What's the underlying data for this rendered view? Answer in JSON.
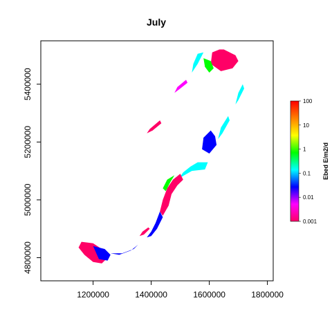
{
  "chart_data": {
    "type": "heatmap",
    "title": "July",
    "xlabel": "",
    "ylabel": "",
    "xlim": [
      1020000,
      1820000
    ],
    "ylim": [
      4720000,
      5550000
    ],
    "x_ticks": [
      {
        "value": 1200000,
        "label": "1200000"
      },
      {
        "value": 1400000,
        "label": "1400000"
      },
      {
        "value": 1600000,
        "label": "1600000"
      },
      {
        "value": 1800000,
        "label": "1800000"
      }
    ],
    "y_ticks": [
      {
        "value": 4800000,
        "label": "4800000"
      },
      {
        "value": 5000000,
        "label": "5000000"
      },
      {
        "value": 5200000,
        "label": "5200000"
      },
      {
        "value": 5400000,
        "label": "5400000"
      }
    ],
    "colorbar": {
      "label": "Ebed E/m2/d",
      "scale": "log",
      "range": [
        0.001,
        100
      ],
      "ticks": [
        "0.001",
        "0.01",
        "0.1",
        "1",
        "10",
        "100"
      ],
      "colors": [
        "#ff0000",
        "#ff8000",
        "#ffff00",
        "#00ff00",
        "#00ffff",
        "#0000ff",
        "#ff00ff",
        "#ff0066"
      ]
    },
    "regions": [
      {
        "name": "north-tip",
        "points": [
          [
            1650000,
            5520000
          ],
          [
            1690000,
            5500000
          ],
          [
            1700000,
            5480000
          ],
          [
            1680000,
            5455000
          ],
          [
            1640000,
            5445000
          ],
          [
            1605000,
            5470000
          ],
          [
            1610000,
            5510000
          ],
          [
            1635000,
            5520000
          ]
        ],
        "level": 0.002
      },
      {
        "name": "north-tip-edge",
        "points": [
          [
            1580000,
            5490000
          ],
          [
            1605000,
            5480000
          ],
          [
            1615000,
            5455000
          ],
          [
            1600000,
            5440000
          ],
          [
            1585000,
            5460000
          ]
        ],
        "level": 0.5
      },
      {
        "name": "north-west-coast",
        "points": [
          [
            1580000,
            5510000
          ],
          [
            1560000,
            5470000
          ],
          [
            1540000,
            5440000
          ],
          [
            1545000,
            5470000
          ],
          [
            1560000,
            5505000
          ]
        ],
        "level": 0.1
      },
      {
        "name": "west-coast-mid",
        "points": [
          [
            1520000,
            5415000
          ],
          [
            1490000,
            5390000
          ],
          [
            1480000,
            5370000
          ],
          [
            1500000,
            5385000
          ],
          [
            1525000,
            5405000
          ]
        ],
        "level": 0.005
      },
      {
        "name": "west-coast-upper",
        "points": [
          [
            1430000,
            5275000
          ],
          [
            1395000,
            5245000
          ],
          [
            1385000,
            5230000
          ],
          [
            1405000,
            5240000
          ],
          [
            1435000,
            5265000
          ]
        ],
        "level": 0.002
      },
      {
        "name": "east-coast-north",
        "points": [
          [
            1715000,
            5400000
          ],
          [
            1700000,
            5370000
          ],
          [
            1690000,
            5330000
          ],
          [
            1700000,
            5345000
          ],
          [
            1720000,
            5385000
          ]
        ],
        "level": 0.1
      },
      {
        "name": "east-coast-upper",
        "points": [
          [
            1665000,
            5290000
          ],
          [
            1640000,
            5250000
          ],
          [
            1630000,
            5210000
          ],
          [
            1645000,
            5230000
          ],
          [
            1670000,
            5275000
          ]
        ],
        "level": 0.1
      },
      {
        "name": "cook-strait-bay",
        "points": [
          [
            1605000,
            5240000
          ],
          [
            1620000,
            5220000
          ],
          [
            1625000,
            5190000
          ],
          [
            1600000,
            5160000
          ],
          [
            1575000,
            5175000
          ],
          [
            1580000,
            5215000
          ]
        ],
        "level": 0.05
      },
      {
        "name": "south-island-north",
        "points": [
          [
            1560000,
            5130000
          ],
          [
            1595000,
            5130000
          ],
          [
            1585000,
            5105000
          ],
          [
            1540000,
            5100000
          ],
          [
            1505000,
            5080000
          ],
          [
            1490000,
            5065000
          ],
          [
            1510000,
            5095000
          ],
          [
            1535000,
            5115000
          ]
        ],
        "level": 0.1
      },
      {
        "name": "south-island-mid",
        "points": [
          [
            1500000,
            5090000
          ],
          [
            1475000,
            5070000
          ],
          [
            1455000,
            5040000
          ],
          [
            1440000,
            5000000
          ],
          [
            1430000,
            4960000
          ],
          [
            1440000,
            4945000
          ],
          [
            1460000,
            4980000
          ],
          [
            1470000,
            5020000
          ],
          [
            1490000,
            5050000
          ],
          [
            1510000,
            5070000
          ]
        ],
        "level": 0.002
      },
      {
        "name": "south-island-mid-cyan",
        "points": [
          [
            1480000,
            5085000
          ],
          [
            1465000,
            5060000
          ],
          [
            1450000,
            5030000
          ],
          [
            1440000,
            5040000
          ],
          [
            1455000,
            5070000
          ]
        ],
        "level": 0.5
      },
      {
        "name": "south-island-lower",
        "points": [
          [
            1430000,
            4960000
          ],
          [
            1415000,
            4920000
          ],
          [
            1400000,
            4890000
          ],
          [
            1385000,
            4870000
          ],
          [
            1400000,
            4875000
          ],
          [
            1420000,
            4900000
          ],
          [
            1440000,
            4940000
          ]
        ],
        "level": 0.05
      },
      {
        "name": "canterbury-spot",
        "points": [
          [
            1395000,
            4900000
          ],
          [
            1375000,
            4880000
          ],
          [
            1360000,
            4875000
          ],
          [
            1370000,
            4890000
          ],
          [
            1390000,
            4905000
          ]
        ],
        "level": 0.002
      },
      {
        "name": "southland-west",
        "points": [
          [
            1160000,
            4855000
          ],
          [
            1200000,
            4850000
          ],
          [
            1230000,
            4830000
          ],
          [
            1250000,
            4800000
          ],
          [
            1230000,
            4780000
          ],
          [
            1200000,
            4785000
          ],
          [
            1170000,
            4810000
          ],
          [
            1150000,
            4835000
          ]
        ],
        "level": 0.002
      },
      {
        "name": "southland-blue",
        "points": [
          [
            1200000,
            4840000
          ],
          [
            1240000,
            4830000
          ],
          [
            1260000,
            4810000
          ],
          [
            1250000,
            4790000
          ],
          [
            1220000,
            4795000
          ]
        ],
        "level": 0.03
      },
      {
        "name": "southland-coast",
        "points": [
          [
            1260000,
            4815000
          ],
          [
            1300000,
            4815000
          ],
          [
            1340000,
            4830000
          ],
          [
            1355000,
            4845000
          ],
          [
            1330000,
            4825000
          ],
          [
            1290000,
            4810000
          ]
        ],
        "level": 0.05
      }
    ]
  }
}
